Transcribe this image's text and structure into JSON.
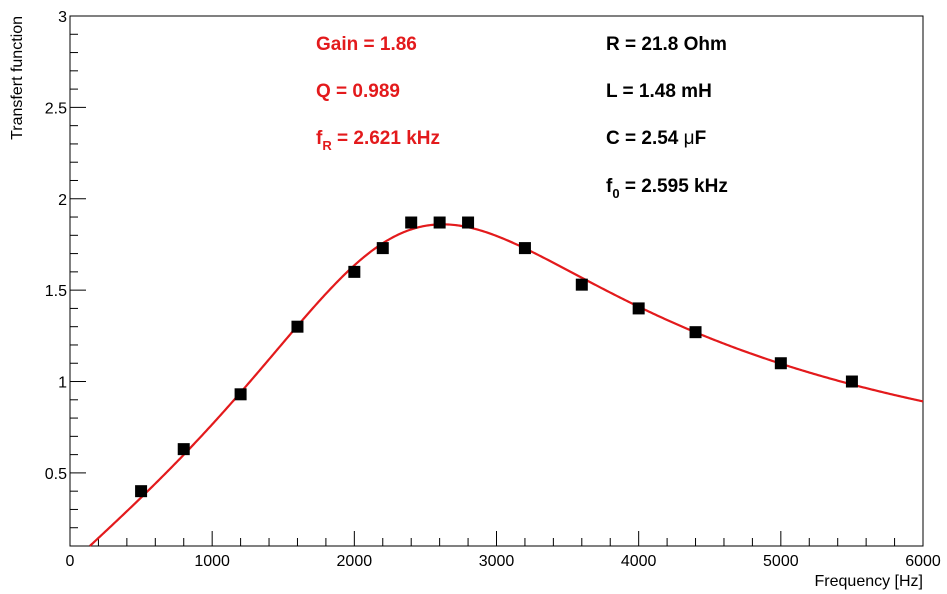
{
  "chart_data": {
    "type": "scatter",
    "xlabel": "Frequency [Hz]",
    "ylabel": "Transfert function",
    "xlim": [
      0,
      6000
    ],
    "ylim": [
      0.1,
      3
    ],
    "x_ticks": [
      0,
      1000,
      2000,
      3000,
      4000,
      5000,
      6000
    ],
    "y_ticks": [
      0.5,
      1,
      1.5,
      2,
      2.5,
      3
    ],
    "y_tick_labels": [
      "0.5",
      "1",
      "1.5",
      "2",
      "2.5",
      "3"
    ],
    "grid": false,
    "series": [
      {
        "kind": "points",
        "marker": "square",
        "color": "#000000",
        "x": [
          500,
          800,
          1200,
          1600,
          2000,
          2200,
          2400,
          2600,
          2800,
          3200,
          3600,
          4000,
          4400,
          5000,
          5500
        ],
        "y": [
          0.4,
          0.63,
          0.93,
          1.3,
          1.6,
          1.73,
          1.87,
          1.87,
          1.87,
          1.73,
          1.53,
          1.4,
          1.27,
          1.1,
          1.0
        ]
      },
      {
        "kind": "fit",
        "color": "#e31a1c",
        "model": "gain*(f/fR)/sqrt((f/fR)^2 + Q^2*((f/fR)^2-1)^2)",
        "params": {
          "gain": 1.86,
          "Q": 0.989,
          "fR": 2621
        }
      }
    ],
    "annotations": {
      "left": [
        {
          "text": "Gain = 1.86",
          "color": "#e31a1c"
        },
        {
          "text": "Q = 0.989",
          "color": "#e31a1c"
        },
        {
          "main": "f",
          "sub": "R",
          "rest": " = 2.621 kHz",
          "color": "#e31a1c"
        }
      ],
      "right": [
        {
          "text": "R = 21.8 Ohm",
          "color": "#000000"
        },
        {
          "text": "L = 1.48 mH",
          "color": "#000000"
        },
        {
          "main": "C = 2.54 ",
          "greek": "μ",
          "rest": "F",
          "color": "#000000"
        },
        {
          "main": "f",
          "sub": "0",
          "rest": " = 2.595 kHz",
          "color": "#000000"
        }
      ]
    }
  }
}
